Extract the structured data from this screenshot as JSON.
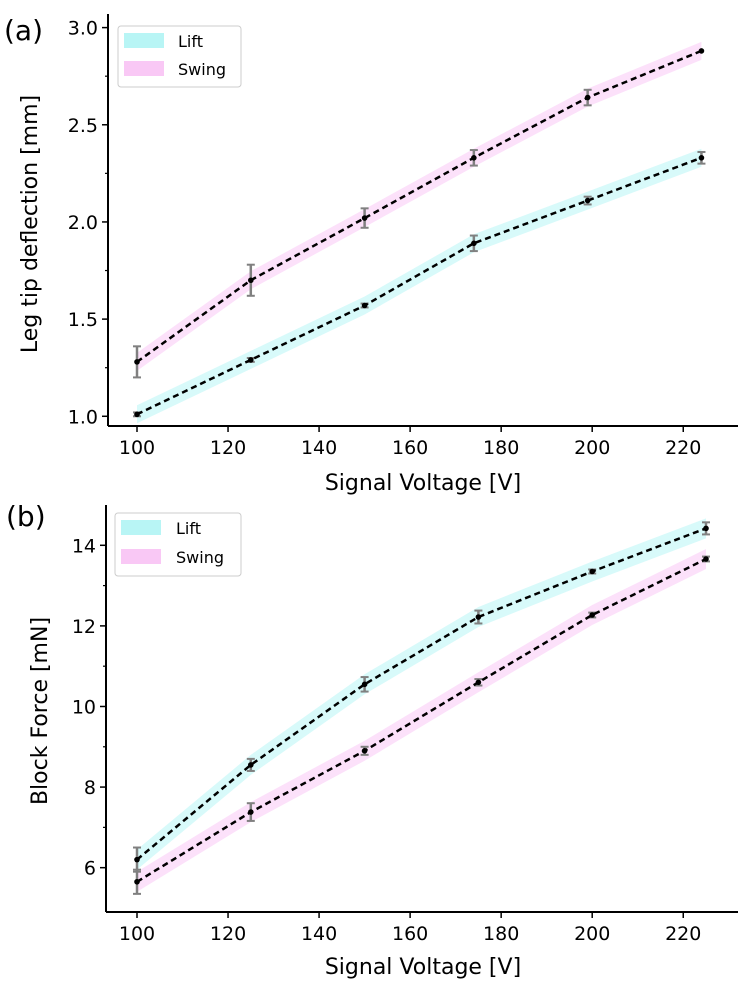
{
  "chart_data": [
    {
      "type": "line",
      "panel_label": "(a)",
      "xlabel": "Signal Voltage [V]",
      "ylabel": "Leg tip deflection [mm]",
      "xlim": [
        94,
        232
      ],
      "ylim": [
        0.95,
        3.07
      ],
      "xticks": [
        100,
        120,
        140,
        160,
        180,
        200,
        220
      ],
      "xtick_labels": [
        "100",
        "120",
        "140",
        "160",
        "180",
        "200",
        "220"
      ],
      "yticks": [
        1.0,
        1.5,
        2.0,
        2.5,
        3.0
      ],
      "ytick_labels": [
        "1.0",
        "1.5",
        "2.0",
        "2.5",
        "3.0"
      ],
      "legend_position": "top-left",
      "series": [
        {
          "name": "Lift",
          "color": "#b8f5f5",
          "x": [
            100,
            125,
            150,
            174,
            199,
            224
          ],
          "values": [
            1.01,
            1.29,
            1.57,
            1.89,
            2.11,
            2.33
          ],
          "errors": [
            0.01,
            0.01,
            0.01,
            0.04,
            0.02,
            0.03
          ]
        },
        {
          "name": "Swing",
          "color": "#f9c8f5",
          "x": [
            100,
            125,
            150,
            174,
            199,
            224
          ],
          "values": [
            1.28,
            1.7,
            2.02,
            2.33,
            2.64,
            2.88
          ],
          "errors": [
            0.08,
            0.08,
            0.05,
            0.04,
            0.04,
            0.0
          ]
        }
      ]
    },
    {
      "type": "line",
      "panel_label": "(b)",
      "xlabel": "Signal Voltage [V]",
      "ylabel": "Block Force [mN]",
      "xlim": [
        94,
        232
      ],
      "ylim": [
        4.9,
        15.0
      ],
      "xticks": [
        100,
        120,
        140,
        160,
        180,
        200,
        220
      ],
      "xtick_labels": [
        "100",
        "120",
        "140",
        "160",
        "180",
        "200",
        "220"
      ],
      "yticks": [
        6,
        8,
        10,
        12,
        14
      ],
      "ytick_labels": [
        "6",
        "8",
        "10",
        "12",
        "14"
      ],
      "legend_position": "top-left",
      "series": [
        {
          "name": "Lift",
          "color": "#b8f5f5",
          "x": [
            100,
            125,
            150,
            175,
            200,
            225
          ],
          "values": [
            6.2,
            8.55,
            10.55,
            12.22,
            13.35,
            14.42
          ],
          "errors": [
            0.3,
            0.15,
            0.18,
            0.16,
            0.05,
            0.15
          ]
        },
        {
          "name": "Swing",
          "color": "#f9c8f5",
          "x": [
            100,
            125,
            150,
            175,
            200,
            225
          ],
          "values": [
            5.65,
            7.38,
            8.9,
            10.6,
            12.27,
            13.66
          ],
          "errors": [
            0.3,
            0.22,
            0.1,
            0.08,
            0.06,
            0.06
          ]
        }
      ]
    }
  ]
}
